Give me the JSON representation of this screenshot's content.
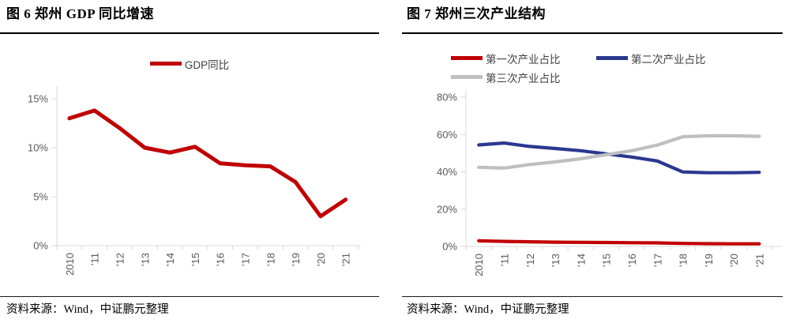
{
  "panels": [
    {
      "source": "资料来源：Wind，中证鹏元整理"
    },
    {
      "source": "资料来源：Wind，中证鹏元整理"
    }
  ],
  "colors": {
    "series_red": "#C00000",
    "series_navy": "#2B3890",
    "series_gray": "#BFBFBF",
    "axis_line": "#D9D9D9",
    "tick_label_text": "#595959",
    "legend_text": "#3F3F3F",
    "rule_black": "#000000"
  },
  "chart_data": [
    {
      "type": "line",
      "title": "图 6 郑州 GDP 同比增速",
      "categories": [
        "2010",
        "'11",
        "'12",
        "'13",
        "'14",
        "'15",
        "'16",
        "'17",
        "'18",
        "'19",
        "'20",
        "'21"
      ],
      "series": [
        {
          "name": "GDP同比",
          "color": "#C00000",
          "values": [
            13.0,
            13.8,
            12.0,
            10.0,
            9.5,
            10.1,
            8.4,
            8.2,
            8.1,
            6.5,
            3.0,
            4.7
          ]
        }
      ],
      "xlabel": "",
      "ylabel": "",
      "ylim": [
        0,
        15
      ],
      "ytick_step": 5,
      "ytick_suffix": "%",
      "grid": false,
      "legend_position": "top"
    },
    {
      "type": "line",
      "title": "图 7 郑州三次产业结构",
      "categories": [
        "2010",
        "'11",
        "'12",
        "'13",
        "'14",
        "'15",
        "'16",
        "'17",
        "'18",
        "'19",
        "'20",
        "'21"
      ],
      "series": [
        {
          "name": "第一次产业占比",
          "color": "#C00000",
          "values": [
            3.0,
            2.7,
            2.5,
            2.3,
            2.2,
            2.1,
            2.0,
            1.9,
            1.6,
            1.5,
            1.4,
            1.4
          ]
        },
        {
          "name": "第二次产业占比",
          "color": "#2B3890",
          "values": [
            54.4,
            55.4,
            53.6,
            52.5,
            51.3,
            49.6,
            47.9,
            45.8,
            39.9,
            39.5,
            39.5,
            39.7
          ]
        },
        {
          "name": "第三次产业占比",
          "color": "#BFBFBF",
          "values": [
            42.4,
            42.0,
            43.9,
            45.3,
            47.0,
            49.2,
            51.3,
            54.3,
            58.8,
            59.3,
            59.3,
            59.0
          ]
        }
      ],
      "xlabel": "",
      "ylabel": "",
      "ylim": [
        0,
        80
      ],
      "ytick_step": 20,
      "ytick_suffix": "%",
      "grid": false,
      "legend_position": "top"
    }
  ]
}
